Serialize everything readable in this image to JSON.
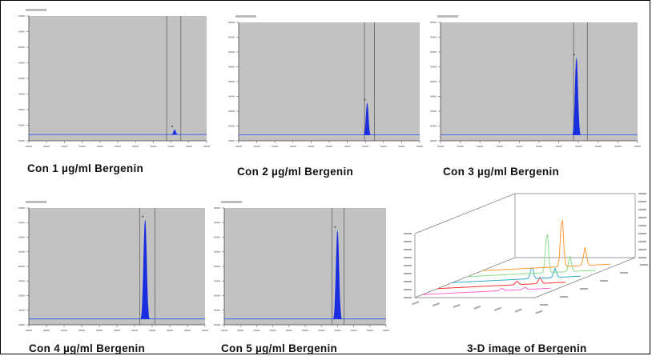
{
  "chart_data": [
    {
      "type": "line",
      "title": "Con 1 µg/ml Bergenin",
      "peak_position": 0.82,
      "peak_height": 0.09,
      "marker_lines": [
        0.775,
        0.855
      ],
      "baseline_level": 0.05
    },
    {
      "type": "line",
      "title": "Con 2 µg/ml Bergenin",
      "peak_position": 0.71,
      "peak_height": 0.32,
      "marker_lines": [
        0.695,
        0.75
      ],
      "baseline_level": 0.05
    },
    {
      "type": "line",
      "title": "Con 3 µg/ml Bergenin",
      "peak_position": 0.69,
      "peak_height": 0.7,
      "marker_lines": [
        0.675,
        0.745
      ],
      "baseline_level": 0.05
    },
    {
      "type": "line",
      "title": "Con 4 µg/ml Bergenin",
      "peak_position": 0.66,
      "peak_height": 0.9,
      "marker_lines": [
        0.63,
        0.715
      ],
      "baseline_level": 0.05
    },
    {
      "type": "line",
      "title": "Con 5 µg/ml Bergenin",
      "peak_position": 0.7,
      "peak_height": 0.81,
      "marker_lines": [
        0.665,
        0.74
      ],
      "baseline_level": 0.05
    },
    {
      "type": "line",
      "title": "3-D image of Bergenin",
      "series": [
        {
          "color": "#ff66cc",
          "peak_heights": [
            0.04,
            0.04
          ]
        },
        {
          "color": "#ff3333",
          "peak_heights": [
            0.06,
            0.1
          ]
        },
        {
          "color": "#33aacc",
          "peak_heights": [
            0.2,
            0.15
          ]
        },
        {
          "color": "#88dd88",
          "peak_heights": [
            0.7,
            0.25
          ]
        },
        {
          "color": "#ff9933",
          "peak_heights": [
            0.85,
            0.3
          ]
        }
      ]
    }
  ],
  "colors": {
    "plot_bg": "#c2c2c2",
    "peak_fill": "#1a2ee0",
    "baseline": "#3355ee",
    "marker": "#555555"
  }
}
